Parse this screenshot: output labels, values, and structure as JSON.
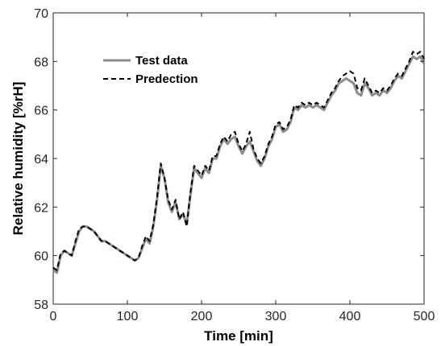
{
  "chart_data": {
    "type": "line",
    "xlabel": "Time [min]",
    "ylabel": "Relative humidity [%rH]",
    "xlim": [
      0,
      500
    ],
    "ylim": [
      58,
      70
    ],
    "xticks": [
      0,
      100,
      200,
      300,
      400,
      500
    ],
    "yticks": [
      58,
      60,
      62,
      64,
      66,
      68,
      70
    ],
    "xtick_labels": [
      "0",
      "100",
      "200",
      "300",
      "400",
      "500"
    ],
    "ytick_labels": [
      "58",
      "60",
      "62",
      "64",
      "66",
      "68",
      "70"
    ],
    "grid": false,
    "legend_position": "upper-left",
    "series": [
      {
        "name": "Test data",
        "color": "#8c8c8c",
        "style": "solid",
        "points": [
          [
            0,
            59.4
          ],
          [
            5,
            59.3
          ],
          [
            10,
            60.0
          ],
          [
            15,
            60.2
          ],
          [
            20,
            60.1
          ],
          [
            25,
            60.0
          ],
          [
            30,
            60.5
          ],
          [
            35,
            61.0
          ],
          [
            40,
            61.2
          ],
          [
            45,
            61.2
          ],
          [
            50,
            61.1
          ],
          [
            55,
            61.0
          ],
          [
            60,
            60.8
          ],
          [
            65,
            60.6
          ],
          [
            70,
            60.6
          ],
          [
            75,
            60.5
          ],
          [
            80,
            60.4
          ],
          [
            85,
            60.3
          ],
          [
            90,
            60.2
          ],
          [
            95,
            60.1
          ],
          [
            100,
            60.0
          ],
          [
            105,
            59.9
          ],
          [
            110,
            59.8
          ],
          [
            115,
            59.9
          ],
          [
            120,
            60.3
          ],
          [
            125,
            60.7
          ],
          [
            130,
            60.5
          ],
          [
            135,
            61.2
          ],
          [
            140,
            62.3
          ],
          [
            145,
            63.7
          ],
          [
            150,
            63.2
          ],
          [
            155,
            62.2
          ],
          [
            160,
            61.8
          ],
          [
            165,
            62.2
          ],
          [
            170,
            61.5
          ],
          [
            175,
            61.7
          ],
          [
            180,
            61.3
          ],
          [
            185,
            62.5
          ],
          [
            190,
            63.6
          ],
          [
            195,
            63.4
          ],
          [
            200,
            63.2
          ],
          [
            205,
            63.6
          ],
          [
            210,
            63.4
          ],
          [
            215,
            64.0
          ],
          [
            220,
            64.0
          ],
          [
            225,
            64.5
          ],
          [
            230,
            64.8
          ],
          [
            235,
            64.6
          ],
          [
            240,
            64.8
          ],
          [
            245,
            64.9
          ],
          [
            250,
            64.5
          ],
          [
            255,
            64.2
          ],
          [
            260,
            64.5
          ],
          [
            265,
            64.7
          ],
          [
            270,
            64.3
          ],
          [
            275,
            63.9
          ],
          [
            280,
            63.7
          ],
          [
            285,
            64.0
          ],
          [
            290,
            64.5
          ],
          [
            295,
            64.8
          ],
          [
            300,
            65.3
          ],
          [
            305,
            65.4
          ],
          [
            310,
            65.1
          ],
          [
            315,
            65.2
          ],
          [
            320,
            65.5
          ],
          [
            325,
            66.1
          ],
          [
            330,
            66.0
          ],
          [
            335,
            66.2
          ],
          [
            340,
            66.1
          ],
          [
            345,
            66.2
          ],
          [
            350,
            66.1
          ],
          [
            355,
            66.2
          ],
          [
            360,
            66.1
          ],
          [
            365,
            66.0
          ],
          [
            370,
            66.3
          ],
          [
            375,
            66.6
          ],
          [
            380,
            66.8
          ],
          [
            385,
            67.1
          ],
          [
            390,
            67.2
          ],
          [
            395,
            67.3
          ],
          [
            400,
            67.2
          ],
          [
            405,
            67.1
          ],
          [
            410,
            66.7
          ],
          [
            415,
            66.6
          ],
          [
            420,
            67.1
          ],
          [
            425,
            66.9
          ],
          [
            430,
            66.6
          ],
          [
            435,
            66.7
          ],
          [
            440,
            66.6
          ],
          [
            445,
            66.8
          ],
          [
            450,
            66.7
          ],
          [
            455,
            66.9
          ],
          [
            460,
            67.2
          ],
          [
            465,
            67.4
          ],
          [
            470,
            67.3
          ],
          [
            475,
            67.6
          ],
          [
            480,
            67.9
          ],
          [
            485,
            68.2
          ],
          [
            490,
            68.1
          ],
          [
            495,
            68.2
          ],
          [
            500,
            67.9
          ]
        ]
      },
      {
        "name": "Predection",
        "color": "#000000",
        "style": "dashed",
        "points": [
          [
            0,
            59.5
          ],
          [
            5,
            59.4
          ],
          [
            10,
            60.1
          ],
          [
            15,
            60.2
          ],
          [
            20,
            60.1
          ],
          [
            25,
            60.0
          ],
          [
            30,
            60.6
          ],
          [
            35,
            61.1
          ],
          [
            40,
            61.2
          ],
          [
            45,
            61.2
          ],
          [
            50,
            61.1
          ],
          [
            55,
            61.0
          ],
          [
            60,
            60.8
          ],
          [
            65,
            60.6
          ],
          [
            70,
            60.6
          ],
          [
            75,
            60.5
          ],
          [
            80,
            60.4
          ],
          [
            85,
            60.3
          ],
          [
            90,
            60.2
          ],
          [
            95,
            60.1
          ],
          [
            100,
            60.0
          ],
          [
            105,
            59.9
          ],
          [
            110,
            59.8
          ],
          [
            115,
            59.9
          ],
          [
            120,
            60.4
          ],
          [
            125,
            60.8
          ],
          [
            130,
            60.6
          ],
          [
            135,
            61.3
          ],
          [
            140,
            62.4
          ],
          [
            145,
            63.8
          ],
          [
            150,
            63.2
          ],
          [
            155,
            62.3
          ],
          [
            160,
            61.9
          ],
          [
            165,
            62.3
          ],
          [
            170,
            61.5
          ],
          [
            175,
            61.8
          ],
          [
            180,
            61.2
          ],
          [
            185,
            62.6
          ],
          [
            190,
            63.7
          ],
          [
            195,
            63.5
          ],
          [
            200,
            63.3
          ],
          [
            205,
            63.7
          ],
          [
            210,
            63.5
          ],
          [
            215,
            64.1
          ],
          [
            220,
            64.1
          ],
          [
            225,
            64.6
          ],
          [
            230,
            64.9
          ],
          [
            235,
            64.7
          ],
          [
            240,
            65.0
          ],
          [
            245,
            65.1
          ],
          [
            250,
            64.6
          ],
          [
            255,
            64.3
          ],
          [
            260,
            64.6
          ],
          [
            265,
            65.1
          ],
          [
            270,
            64.4
          ],
          [
            275,
            64.0
          ],
          [
            280,
            63.8
          ],
          [
            285,
            64.1
          ],
          [
            290,
            64.6
          ],
          [
            295,
            64.9
          ],
          [
            300,
            65.4
          ],
          [
            305,
            65.5
          ],
          [
            310,
            65.2
          ],
          [
            315,
            65.3
          ],
          [
            320,
            65.6
          ],
          [
            325,
            66.2
          ],
          [
            330,
            66.1
          ],
          [
            335,
            66.3
          ],
          [
            340,
            66.2
          ],
          [
            345,
            66.3
          ],
          [
            350,
            66.2
          ],
          [
            355,
            66.3
          ],
          [
            360,
            66.2
          ],
          [
            365,
            66.1
          ],
          [
            370,
            66.4
          ],
          [
            375,
            66.7
          ],
          [
            380,
            66.9
          ],
          [
            385,
            67.2
          ],
          [
            390,
            67.4
          ],
          [
            395,
            67.5
          ],
          [
            400,
            67.6
          ],
          [
            405,
            67.5
          ],
          [
            410,
            66.9
          ],
          [
            415,
            66.8
          ],
          [
            420,
            67.3
          ],
          [
            425,
            67.0
          ],
          [
            430,
            66.7
          ],
          [
            435,
            66.8
          ],
          [
            440,
            66.7
          ],
          [
            445,
            66.9
          ],
          [
            450,
            66.8
          ],
          [
            455,
            67.0
          ],
          [
            460,
            67.3
          ],
          [
            465,
            67.5
          ],
          [
            470,
            67.4
          ],
          [
            475,
            67.7
          ],
          [
            480,
            68.0
          ],
          [
            485,
            68.4
          ],
          [
            490,
            68.3
          ],
          [
            495,
            68.4
          ],
          [
            500,
            68.1
          ]
        ]
      }
    ]
  }
}
